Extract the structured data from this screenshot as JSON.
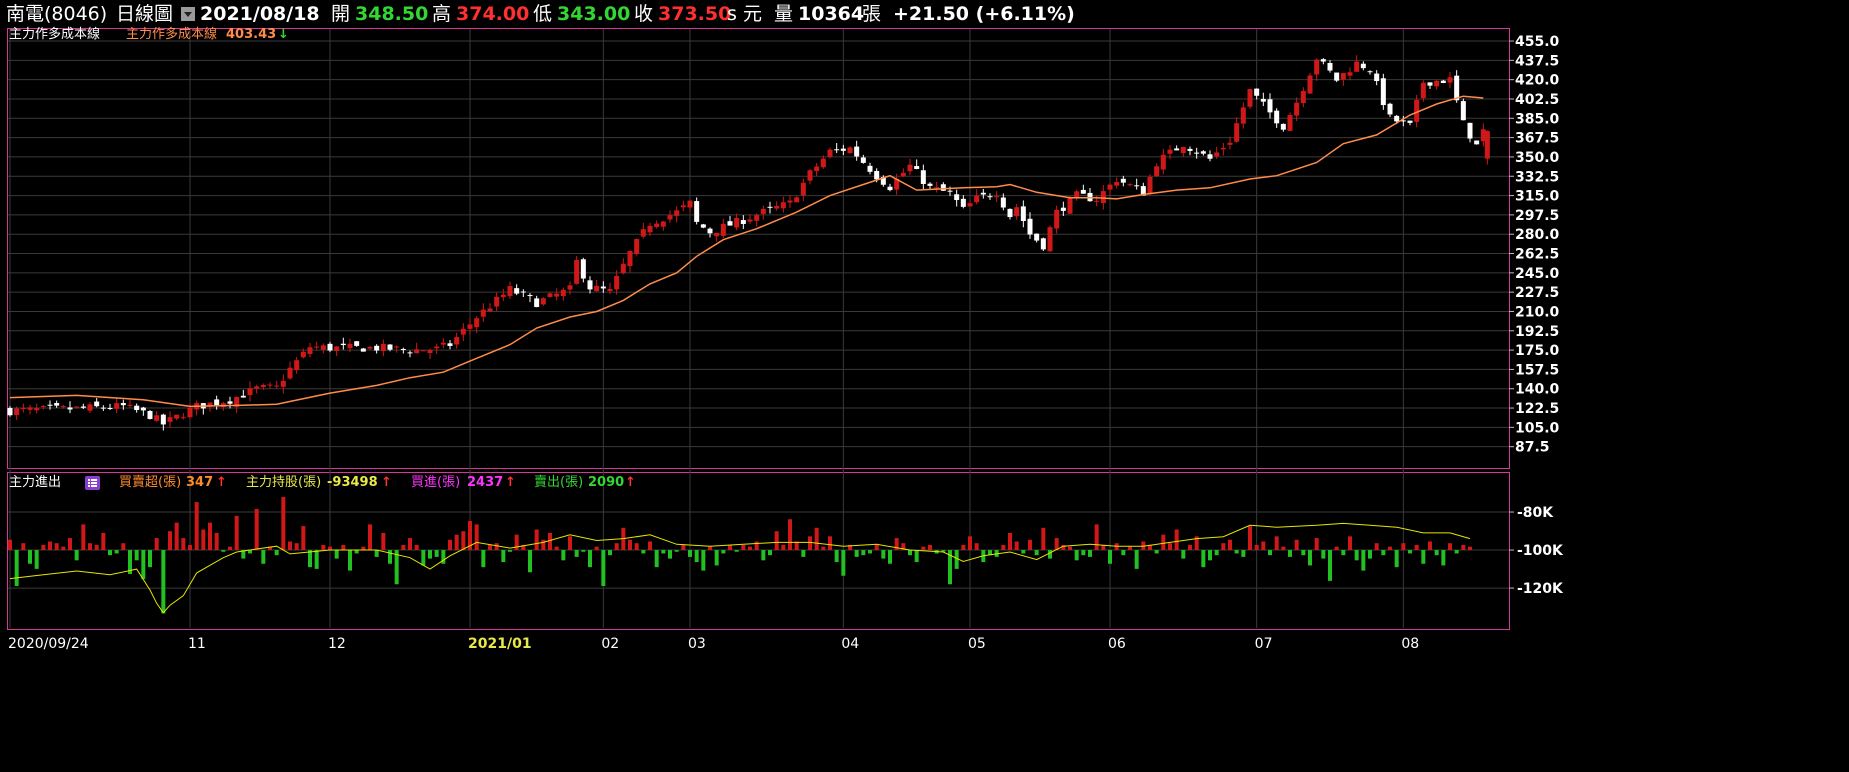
{
  "header": {
    "symbol": "南電(8046)",
    "chart_type": "日線圖",
    "date": "2021/08/18",
    "open_label": "開",
    "open": "348.50",
    "high_label": "高",
    "high": "374.00",
    "low_label": "低",
    "low": "343.00",
    "close_label": "收",
    "close": "373.50",
    "close_suffix": "s 元",
    "volume_label": "量",
    "volume": "10364",
    "volume_unit": "張",
    "change": "+21.50 (+6.11%)"
  },
  "upper_panel": {
    "title": "主力作多成本線",
    "legend_label": "主力作多成本線",
    "legend_value": "403.43",
    "legend_arrow": "↓"
  },
  "lower_panel": {
    "title": "主力進出",
    "legend": [
      {
        "label": "買賣超(張)",
        "value": "347",
        "arrow": "↑",
        "color": "#ff8c2a"
      },
      {
        "label": "主力持股(張)",
        "value": "-93498",
        "arrow": "↑",
        "color": "#e8e84a"
      },
      {
        "label": "買進(張)",
        "value": "2437",
        "arrow": "↑",
        "color": "#ff33ff"
      },
      {
        "label": "賣出(張)",
        "value": "2090",
        "arrow": "↑",
        "color": "#33d633"
      }
    ]
  },
  "colors": {
    "up": "#d11818",
    "down": "#ffffff",
    "line": "#ff8c4a",
    "holding": "#e6e600",
    "buy": "#d11818",
    "sell": "#22c022",
    "border": "#d6389a",
    "grid": "#3a3a3a"
  },
  "chart_data": [
    {
      "type": "candlestick",
      "title": "主力作多成本線",
      "y_ticks": [
        "455.0",
        "437.5",
        "420.0",
        "402.5",
        "385.0",
        "367.5",
        "350.0",
        "332.5",
        "315.0",
        "297.5",
        "280.0",
        "262.5",
        "245.0",
        "227.5",
        "210.0",
        "192.5",
        "175.0",
        "157.5",
        "140.0",
        "122.5",
        "105.0",
        "87.5"
      ],
      "ylim": [
        70,
        465
      ],
      "x_ticks": [
        {
          "label": "2020/09/24",
          "day": 0
        },
        {
          "label": "11",
          "day": 27
        },
        {
          "label": "12",
          "day": 48
        },
        {
          "label": "2021/01",
          "day": 69
        },
        {
          "label": "02",
          "day": 89
        },
        {
          "label": "03",
          "day": 102
        },
        {
          "label": "04",
          "day": 125
        },
        {
          "label": "05",
          "day": 144
        },
        {
          "label": "06",
          "day": 165
        },
        {
          "label": "07",
          "day": 187
        },
        {
          "label": "08",
          "day": 209
        }
      ],
      "total_days": 222,
      "close_path": [
        [
          0,
          120
        ],
        [
          10,
          122
        ],
        [
          17,
          124
        ],
        [
          21,
          116
        ],
        [
          23,
          108
        ],
        [
          28,
          124
        ],
        [
          33,
          130
        ],
        [
          37,
          140
        ],
        [
          40,
          141
        ],
        [
          42,
          158
        ],
        [
          45,
          178
        ],
        [
          48,
          177
        ],
        [
          55,
          177
        ],
        [
          60,
          175
        ],
        [
          64,
          176
        ],
        [
          66,
          180
        ],
        [
          70,
          205
        ],
        [
          75,
          230
        ],
        [
          79,
          218
        ],
        [
          84,
          230
        ],
        [
          85,
          255
        ],
        [
          87,
          232
        ],
        [
          90,
          228
        ],
        [
          93,
          263
        ],
        [
          96,
          290
        ],
        [
          100,
          300
        ],
        [
          102,
          308
        ],
        [
          103,
          290
        ],
        [
          105,
          282
        ],
        [
          110,
          293
        ],
        [
          113,
          300
        ],
        [
          117,
          308
        ],
        [
          120,
          335
        ],
        [
          123,
          355
        ],
        [
          126,
          358
        ],
        [
          130,
          333
        ],
        [
          132,
          323
        ],
        [
          135,
          342
        ],
        [
          138,
          322
        ],
        [
          141,
          317
        ],
        [
          143,
          302
        ],
        [
          145,
          312
        ],
        [
          148,
          318
        ],
        [
          150,
          297
        ],
        [
          151,
          305
        ],
        [
          153,
          280
        ],
        [
          155,
          270
        ],
        [
          157,
          300
        ],
        [
          160,
          315
        ],
        [
          163,
          312
        ],
        [
          166,
          330
        ],
        [
          170,
          318
        ],
        [
          172,
          345
        ],
        [
          176,
          362
        ],
        [
          180,
          348
        ],
        [
          183,
          365
        ],
        [
          186,
          410
        ],
        [
          189,
          390
        ],
        [
          191,
          378
        ],
        [
          193,
          400
        ],
        [
          196,
          440
        ],
        [
          199,
          420
        ],
        [
          202,
          435
        ],
        [
          204,
          430
        ],
        [
          207,
          385
        ],
        [
          210,
          378
        ],
        [
          212,
          418
        ],
        [
          216,
          420
        ],
        [
          218,
          380
        ],
        [
          220,
          360
        ],
        [
          221,
          373.5
        ]
      ],
      "cost_line": [
        [
          0,
          132
        ],
        [
          10,
          134
        ],
        [
          20,
          130
        ],
        [
          27,
          124
        ],
        [
          35,
          125
        ],
        [
          40,
          126
        ],
        [
          48,
          136
        ],
        [
          55,
          143
        ],
        [
          60,
          150
        ],
        [
          65,
          155
        ],
        [
          69,
          165
        ],
        [
          75,
          180
        ],
        [
          79,
          195
        ],
        [
          84,
          205
        ],
        [
          88,
          210
        ],
        [
          92,
          220
        ],
        [
          96,
          235
        ],
        [
          100,
          245
        ],
        [
          103,
          260
        ],
        [
          107,
          275
        ],
        [
          112,
          285
        ],
        [
          118,
          300
        ],
        [
          123,
          315
        ],
        [
          128,
          325
        ],
        [
          132,
          333
        ],
        [
          136,
          320
        ],
        [
          143,
          322
        ],
        [
          148,
          323
        ],
        [
          150,
          325
        ],
        [
          154,
          318
        ],
        [
          159,
          313
        ],
        [
          163,
          313
        ],
        [
          166,
          312
        ],
        [
          170,
          316
        ],
        [
          175,
          320
        ],
        [
          180,
          322
        ],
        [
          186,
          330
        ],
        [
          190,
          333
        ],
        [
          196,
          345
        ],
        [
          200,
          362
        ],
        [
          205,
          370
        ],
        [
          210,
          388
        ],
        [
          214,
          398
        ],
        [
          218,
          405
        ],
        [
          221,
          403.43
        ]
      ]
    },
    {
      "type": "bar",
      "title": "主力進出",
      "y_ticks": [
        "-80K",
        "-100K",
        "-120K"
      ],
      "ylim": [
        -141,
        -60
      ],
      "holding_path": [
        [
          0,
          -115
        ],
        [
          5,
          -113
        ],
        [
          10,
          -111
        ],
        [
          15,
          -113
        ],
        [
          19,
          -110
        ],
        [
          21,
          -121
        ],
        [
          22,
          -128
        ],
        [
          23,
          -133
        ],
        [
          24,
          -129
        ],
        [
          26,
          -124
        ],
        [
          28,
          -112
        ],
        [
          30,
          -108
        ],
        [
          32,
          -104
        ],
        [
          34,
          -101
        ],
        [
          36,
          -100
        ],
        [
          40,
          -98
        ],
        [
          42,
          -102
        ],
        [
          48,
          -100
        ],
        [
          55,
          -100
        ],
        [
          60,
          -104
        ],
        [
          63,
          -110
        ],
        [
          66,
          -103
        ],
        [
          70,
          -96
        ],
        [
          75,
          -99
        ],
        [
          80,
          -96
        ],
        [
          84,
          -92
        ],
        [
          88,
          -95
        ],
        [
          92,
          -94
        ],
        [
          96,
          -92
        ],
        [
          100,
          -97
        ],
        [
          105,
          -98
        ],
        [
          110,
          -97
        ],
        [
          115,
          -96
        ],
        [
          120,
          -96
        ],
        [
          125,
          -98
        ],
        [
          130,
          -97
        ],
        [
          135,
          -100
        ],
        [
          140,
          -101
        ],
        [
          143,
          -106
        ],
        [
          146,
          -103
        ],
        [
          150,
          -101
        ],
        [
          154,
          -105
        ],
        [
          158,
          -98
        ],
        [
          162,
          -97
        ],
        [
          166,
          -98
        ],
        [
          170,
          -98
        ],
        [
          174,
          -96
        ],
        [
          178,
          -94
        ],
        [
          182,
          -93
        ],
        [
          186,
          -87
        ],
        [
          190,
          -88
        ],
        [
          196,
          -87
        ],
        [
          200,
          -86
        ],
        [
          204,
          -87
        ],
        [
          208,
          -88
        ],
        [
          212,
          -91
        ],
        [
          216,
          -91
        ],
        [
          219,
          -94
        ]
      ],
      "flow": [
        6,
        -21,
        4,
        -8,
        -11,
        3,
        5,
        4,
        2,
        7,
        -6,
        15,
        4,
        3,
        10,
        -3,
        -2,
        4,
        -14,
        -6,
        -17,
        -10,
        7,
        -37,
        11,
        16,
        7,
        3,
        28,
        12,
        16,
        10,
        -1,
        2,
        20,
        -5,
        -2,
        24,
        -8,
        2,
        -3,
        31,
        5,
        4,
        14,
        -10,
        -11,
        3,
        2,
        -5,
        3,
        -12,
        -2,
        2,
        15,
        -4,
        10,
        -8,
        -20,
        3,
        7,
        3,
        -9,
        -5,
        -4,
        -8,
        6,
        9,
        11,
        17,
        15,
        -10,
        3,
        4,
        -7,
        -1,
        9,
        3,
        -13,
        12,
        6,
        10,
        2,
        -6,
        8,
        -4,
        -1,
        -10,
        2,
        -21,
        -3,
        4,
        13,
        6,
        4,
        -2,
        5,
        -10,
        -2,
        -5,
        -1,
        3,
        -4,
        -7,
        -12,
        2,
        -9,
        -2,
        3,
        -1,
        3,
        2,
        5,
        -6,
        -3,
        11,
        3,
        18,
        5,
        -4,
        8,
        13,
        2,
        8,
        -7,
        -15,
        3,
        -4,
        -3,
        -2,
        3,
        -5,
        -8,
        7,
        4,
        -3,
        -7,
        2,
        3,
        -2,
        -1,
        -20,
        -11,
        3,
        8,
        4,
        -7,
        -3,
        -4,
        3,
        10,
        5,
        -2,
        6,
        -3,
        13,
        -5,
        7,
        3,
        2,
        -6,
        -3,
        -4,
        15,
        3,
        -8,
        4,
        -3,
        2,
        -11,
        5,
        3,
        -2,
        9,
        4,
        12,
        -5,
        3,
        8,
        -10,
        -6,
        -3,
        4,
        6,
        -2,
        -4,
        14,
        3,
        5,
        -3,
        8,
        2,
        -4,
        6,
        -3,
        -9,
        7,
        -5,
        -18,
        2,
        -3,
        8,
        -6,
        -12,
        -5,
        4,
        -3,
        2,
        -10,
        4,
        -2,
        3,
        -8,
        5,
        -3,
        -9,
        4,
        -2,
        3,
        2
      ]
    }
  ]
}
